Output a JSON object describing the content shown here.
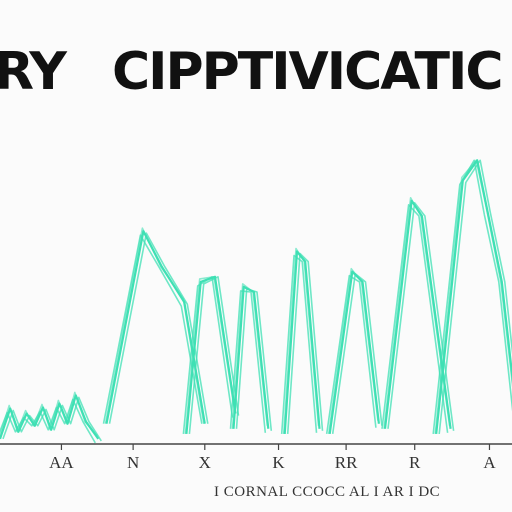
{
  "chart_data": {
    "type": "line",
    "title_left": "RY",
    "title_right": "CIPPTIVICATIC",
    "colors": {
      "line": "#3fe0b4",
      "axis": "#444444",
      "text": "#222222"
    },
    "grid": false,
    "legend": "none",
    "xlim": [
      0,
      500
    ],
    "ylim": [
      0,
      300
    ],
    "tick_labels": [
      "AA",
      "N",
      "X",
      "K",
      "RR",
      "R",
      "A"
    ],
    "tick_positions": [
      60,
      130,
      200,
      272,
      338,
      405,
      478
    ],
    "series_values": [
      [
        5,
        35,
        12,
        30,
        18,
        36,
        14,
        40,
        20,
        48,
        22,
        5
      ],
      [
        20,
        210,
        175,
        140,
        20
      ],
      [
        10,
        160,
        165,
        30
      ],
      [
        15,
        155,
        150,
        15
      ],
      [
        10,
        190,
        180,
        15
      ],
      [
        10,
        170,
        160,
        20
      ],
      [
        15,
        240,
        225,
        15
      ],
      [
        10,
        260,
        280,
        230,
        160,
        15
      ]
    ],
    "series_x": [
      [
        0,
        10,
        18,
        26,
        34,
        42,
        50,
        58,
        66,
        74,
        84,
        96
      ],
      [
        104,
        140,
        158,
        180,
        200
      ],
      [
        182,
        196,
        210,
        230
      ],
      [
        228,
        238,
        248,
        262
      ],
      [
        278,
        290,
        298,
        312
      ],
      [
        322,
        344,
        354,
        370
      ],
      [
        376,
        402,
        412,
        440
      ],
      [
        426,
        452,
        466,
        476,
        490,
        506
      ]
    ],
    "footer": "I CORNAL  CCOCC  AL  I  AR  I DC"
  }
}
